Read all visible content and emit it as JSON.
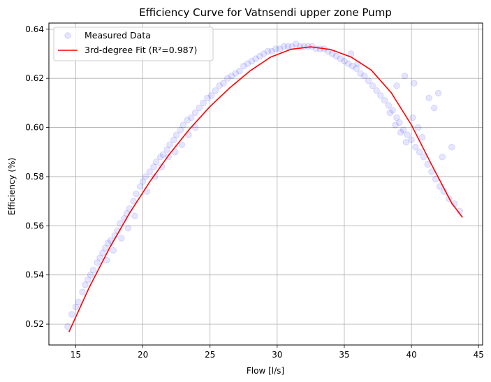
{
  "chart_data": {
    "type": "scatter",
    "title": "Efficiency Curve for Vatnsendi upper zone Pump",
    "xlabel": "Flow [l/s]",
    "ylabel": "Efficiency (%)",
    "xlim": [
      13.0,
      45.3
    ],
    "ylim": [
      0.5115,
      0.6425
    ],
    "x_ticks": [
      15,
      20,
      25,
      30,
      35,
      40,
      45
    ],
    "y_ticks": [
      0.52,
      0.54,
      0.56,
      0.58,
      0.6,
      0.62,
      0.64
    ],
    "x_tick_labels": [
      "15",
      "20",
      "25",
      "30",
      "35",
      "40",
      "45"
    ],
    "y_tick_labels": [
      "0.52",
      "0.54",
      "0.56",
      "0.58",
      "0.60",
      "0.62",
      "0.64"
    ],
    "grid": true,
    "legend_position": "top-left",
    "series": [
      {
        "name": "Measured Data",
        "kind": "scatter",
        "color": "#0000ff",
        "opacity": 0.1,
        "x": [
          14.4,
          14.7,
          15.0,
          15.2,
          15.5,
          15.7,
          15.9,
          16.1,
          16.3,
          16.6,
          16.8,
          17.0,
          17.2,
          17.4,
          17.6,
          17.9,
          18.1,
          18.3,
          18.6,
          18.8,
          19.0,
          19.3,
          19.5,
          19.8,
          20.0,
          20.2,
          20.5,
          20.8,
          21.0,
          21.3,
          21.5,
          21.8,
          22.0,
          22.3,
          22.5,
          22.8,
          23.0,
          23.3,
          23.6,
          23.9,
          24.2,
          24.5,
          24.8,
          25.1,
          25.4,
          25.7,
          26.0,
          26.3,
          26.6,
          26.9,
          27.2,
          27.5,
          27.8,
          28.1,
          28.4,
          28.7,
          29.0,
          29.3,
          29.6,
          29.9,
          30.2,
          30.5,
          30.8,
          31.1,
          31.4,
          31.7,
          32.0,
          32.3,
          32.6,
          32.9,
          33.2,
          33.5,
          33.8,
          34.1,
          34.4,
          34.7,
          35.0,
          35.3,
          35.6,
          35.9,
          36.2,
          36.5,
          36.8,
          37.1,
          37.4,
          37.7,
          38.0,
          38.3,
          38.6,
          38.9,
          39.1,
          39.4,
          39.7,
          40.0,
          40.3,
          40.6,
          40.9,
          41.2,
          41.5,
          41.8,
          42.1,
          42.4,
          42.8,
          43.2,
          43.6,
          17.3,
          17.8,
          18.4,
          18.9,
          19.4,
          20.3,
          20.9,
          21.4,
          21.9,
          22.4,
          22.9,
          23.4,
          23.9,
          38.4,
          38.8,
          39.2,
          39.6,
          40.1,
          40.5,
          40.8,
          41.3,
          41.7,
          42.0,
          38.9,
          39.5,
          40.2,
          36.0,
          35.5,
          42.3,
          43.0
        ],
        "y": [
          0.519,
          0.524,
          0.527,
          0.529,
          0.533,
          0.536,
          0.538,
          0.54,
          0.542,
          0.545,
          0.547,
          0.549,
          0.551,
          0.553,
          0.554,
          0.556,
          0.558,
          0.561,
          0.563,
          0.565,
          0.567,
          0.57,
          0.573,
          0.576,
          0.578,
          0.58,
          0.582,
          0.584,
          0.586,
          0.588,
          0.589,
          0.591,
          0.593,
          0.595,
          0.597,
          0.599,
          0.601,
          0.603,
          0.604,
          0.606,
          0.608,
          0.61,
          0.612,
          0.613,
          0.615,
          0.617,
          0.618,
          0.62,
          0.621,
          0.622,
          0.623,
          0.625,
          0.626,
          0.627,
          0.628,
          0.629,
          0.63,
          0.631,
          0.631,
          0.632,
          0.632,
          0.633,
          0.633,
          0.633,
          0.634,
          0.633,
          0.633,
          0.633,
          0.633,
          0.632,
          0.632,
          0.632,
          0.631,
          0.63,
          0.629,
          0.628,
          0.627,
          0.626,
          0.625,
          0.624,
          0.622,
          0.621,
          0.619,
          0.617,
          0.615,
          0.613,
          0.611,
          0.609,
          0.607,
          0.604,
          0.602,
          0.599,
          0.597,
          0.595,
          0.592,
          0.59,
          0.588,
          0.585,
          0.582,
          0.579,
          0.576,
          0.574,
          0.571,
          0.569,
          0.566,
          0.546,
          0.55,
          0.555,
          0.559,
          0.564,
          0.574,
          0.58,
          0.584,
          0.588,
          0.59,
          0.593,
          0.597,
          0.6,
          0.606,
          0.601,
          0.598,
          0.594,
          0.604,
          0.6,
          0.596,
          0.612,
          0.608,
          0.614,
          0.617,
          0.621,
          0.618,
          0.626,
          0.63,
          0.588,
          0.592
        ]
      },
      {
        "name": "3rd-degree Fit (R²=0.987)",
        "kind": "line",
        "color": "#ff0000",
        "x": [
          14.5,
          16.0,
          17.5,
          19.0,
          20.5,
          22.0,
          23.5,
          25.0,
          26.5,
          28.0,
          29.5,
          31.0,
          32.5,
          34.0,
          35.5,
          37.0,
          38.5,
          40.0,
          41.5,
          43.0,
          43.8
        ],
        "y": [
          0.5168,
          0.5349,
          0.5508,
          0.5651,
          0.5778,
          0.5893,
          0.5995,
          0.6085,
          0.6163,
          0.6231,
          0.6286,
          0.6318,
          0.6328,
          0.6317,
          0.6287,
          0.6234,
          0.6141,
          0.601,
          0.5849,
          0.5692,
          0.5634
        ]
      }
    ]
  }
}
